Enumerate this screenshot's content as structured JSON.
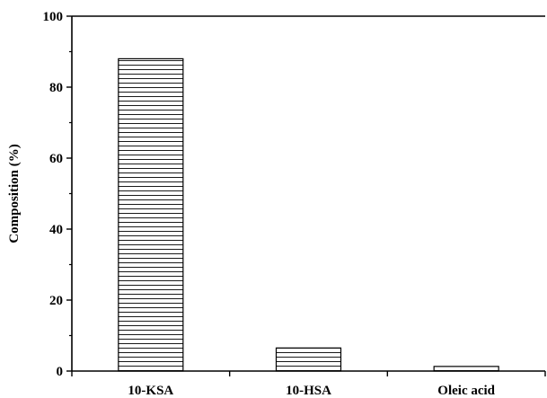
{
  "chart_data": {
    "type": "bar",
    "categories": [
      "10-KSA",
      "10-HSA",
      "Oleic acid"
    ],
    "values": [
      88,
      6.5,
      1.3
    ],
    "xlabel": "",
    "ylabel": "Composition (%)",
    "ylim": [
      0,
      100
    ],
    "yticks": [
      0,
      20,
      40,
      60,
      80,
      100
    ],
    "bar_fill": "horizontal-hatch",
    "colors": {
      "stroke": "#000000",
      "background": "#ffffff"
    },
    "grid": false,
    "legend": "none"
  }
}
